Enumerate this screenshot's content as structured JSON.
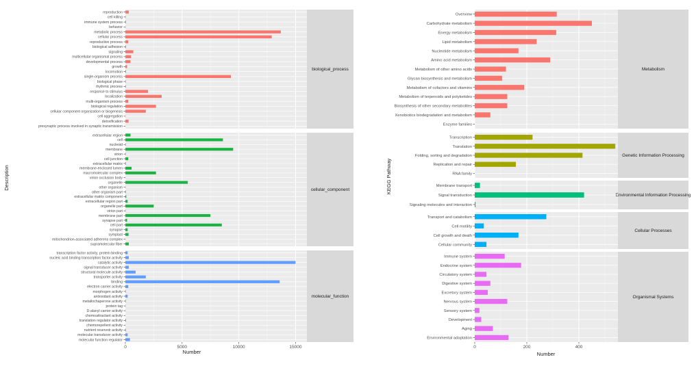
{
  "chart_data": [
    {
      "type": "bar",
      "orientation": "horizontal",
      "xlabel": "Number",
      "ylabel": "Description",
      "xlim": [
        0,
        16000
      ],
      "xticks": [
        0,
        5000,
        10000,
        15000
      ],
      "xtick_labels": [
        "0",
        "5000",
        "10000",
        "15000"
      ],
      "grid": true,
      "facets": [
        {
          "name": "biological_process",
          "color": "#f8766d",
          "categories": [
            "reproduction",
            "cell killing",
            "immune system process",
            "behavior",
            "metabolic process",
            "cellular process",
            "reproductive process",
            "biological adhesion",
            "signaling",
            "multicellular organismal process",
            "developmental process",
            "growth",
            "locomotion",
            "single-organism process",
            "biological phase",
            "rhythmic process",
            "response to stimulus",
            "localization",
            "multi-organism process",
            "biological regulation",
            "cellular component organization or biogenesis",
            "cell aggregation",
            "detoxification",
            "presynaptic process involved in synaptic transmission"
          ],
          "values": [
            300,
            30,
            60,
            20,
            13700,
            12900,
            250,
            60,
            700,
            500,
            450,
            150,
            60,
            9300,
            40,
            50,
            2000,
            3200,
            250,
            2700,
            1800,
            15,
            280,
            8
          ]
        },
        {
          "name": "cellular_component",
          "color": "#1bb341",
          "categories": [
            "extracellular region",
            "cell",
            "nucleoid",
            "membrane",
            "virion",
            "cell junction",
            "extracellular matrix",
            "membrane-enclosed lumen",
            "macromolecular complex",
            "virion occlusion body",
            "organelle",
            "other organism",
            "other organism part",
            "extracellular matrix component",
            "extracellular region part",
            "organelle part",
            "virion part",
            "membrane part",
            "synapse part",
            "cell part",
            "synapse",
            "symplast",
            "mitochondrion-associated adherens complex",
            "supramolecular fiber"
          ],
          "values": [
            450,
            8600,
            30,
            9500,
            30,
            250,
            40,
            550,
            2700,
            8,
            5500,
            15,
            40,
            80,
            200,
            2500,
            20,
            7500,
            150,
            8500,
            200,
            280,
            8,
            300
          ]
        },
        {
          "name": "molecular_function",
          "color": "#619cff",
          "categories": [
            "transcription factor activity, protein binding",
            "nucleic acid binding transcription factor activity",
            "catalytic activity",
            "signal transducer activity",
            "structural molecule activity",
            "transporter activity",
            "binding",
            "electron carrier activity",
            "morphogen activity",
            "antioxidant activity",
            "metallochaperone activity",
            "protein tag",
            "D-alanyl carrier activity",
            "chemoattractant activity",
            "translation regulator activity",
            "chemorepellent activity",
            "nutrient reservoir activity",
            "molecular transducer activity",
            "molecular function regulator"
          ],
          "values": [
            200,
            300,
            15000,
            300,
            900,
            1800,
            13600,
            250,
            40,
            200,
            40,
            20,
            15,
            8,
            60,
            8,
            50,
            200,
            400
          ]
        }
      ]
    },
    {
      "type": "bar",
      "orientation": "horizontal",
      "xlabel": "Number",
      "ylabel": "KEGG Pathway",
      "xlim": [
        0,
        550
      ],
      "xticks": [
        0,
        200,
        400
      ],
      "xtick_labels": [
        "0",
        "200",
        "400"
      ],
      "grid": true,
      "facets": [
        {
          "name": "Metabolism",
          "color": "#f8766d",
          "categories": [
            "Overview",
            "Carbohydrate metabolism",
            "Energy metabolism",
            "Lipid metabolism",
            "Nucleotide metabolism",
            "Amino acid metabolism",
            "Metabolism of other amino acids",
            "Glycan biosynthesis and metabolism",
            "Metabolism of cofactors and vitamins",
            "Metabolism of terpenoids and polyketides",
            "Biosynthesis of other secondary metabolites",
            "Xenobiotics biodegradation and metabolism",
            "Enzyme families"
          ],
          "values": [
            315,
            450,
            313,
            238,
            168,
            290,
            120,
            105,
            190,
            125,
            125,
            60,
            0
          ]
        },
        {
          "name": "Genetic Information Processing",
          "color": "#a3a500",
          "categories": [
            "Transcription",
            "Translation",
            "Folding, sorting and degradation",
            "Replication and repair",
            "RNA family"
          ],
          "values": [
            222,
            540,
            414,
            158,
            0
          ]
        },
        {
          "name": "Environmental Information Processing",
          "color": "#00bf7d",
          "categories": [
            "Membrane transport",
            "Signal transduction",
            "Signaling molecules and interaction"
          ],
          "values": [
            20,
            420,
            3
          ]
        },
        {
          "name": "Cellular Processes",
          "color": "#00b0f6",
          "categories": [
            "Transport and catabolism",
            "Cell motility",
            "Cell growth and death",
            "Cellular community"
          ],
          "values": [
            275,
            35,
            168,
            45
          ]
        },
        {
          "name": "Organismal Systems",
          "color": "#e76bf3",
          "categories": [
            "Immune system",
            "Endocrine system",
            "Circulatory system",
            "Digestive system",
            "Excretory system",
            "Nervous system",
            "Sensory system",
            "Development",
            "Aging",
            "Environmental adaptation"
          ],
          "values": [
            115,
            178,
            45,
            60,
            50,
            125,
            18,
            25,
            70,
            130
          ]
        }
      ]
    }
  ]
}
